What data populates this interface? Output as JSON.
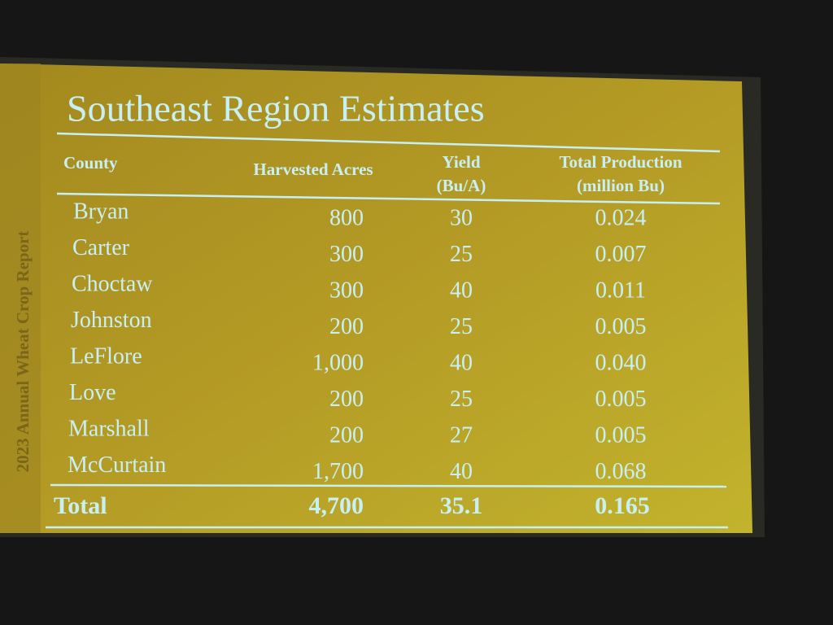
{
  "title": "Southeast Region Estimates",
  "side_label": "2023 Annual Wheat Crop Report",
  "table": {
    "headers": [
      [
        "County"
      ],
      [
        "Harvested Acres"
      ],
      [
        "Yield",
        "(Bu/A)"
      ],
      [
        "Total Production",
        "(million Bu)"
      ]
    ],
    "rows": [
      [
        "Bryan",
        "800",
        "30",
        "0.024"
      ],
      [
        "Carter",
        "300",
        "25",
        "0.007"
      ],
      [
        "Choctaw",
        "300",
        "40",
        "0.011"
      ],
      [
        "Johnston",
        "200",
        "25",
        "0.005"
      ],
      [
        "LeFlore",
        "1,000",
        "40",
        "0.040"
      ],
      [
        "Love",
        "200",
        "25",
        "0.005"
      ],
      [
        "Marshall",
        "200",
        "27",
        "0.005"
      ],
      [
        "McCurtain",
        "1,700",
        "40",
        "0.068"
      ]
    ],
    "total": [
      "Total",
      "4,700",
      "35.1",
      "0.165"
    ]
  }
}
